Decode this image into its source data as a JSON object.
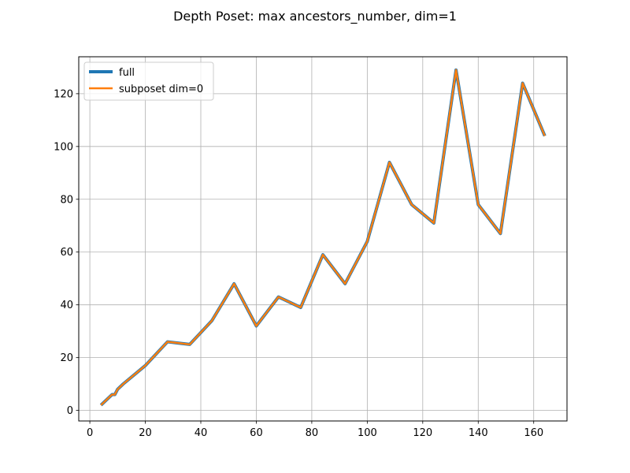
{
  "chart_data": {
    "type": "line",
    "title": "Depth Poset: max ancestors_number, dim=1",
    "xlabel": "",
    "ylabel": "",
    "xlim": [
      -4,
      172
    ],
    "ylim": [
      -4,
      134
    ],
    "x_ticks": [
      0,
      20,
      40,
      60,
      80,
      100,
      120,
      140,
      160
    ],
    "y_ticks": [
      0,
      20,
      40,
      60,
      80,
      100,
      120
    ],
    "grid": true,
    "legend_position": "top-left",
    "series": [
      {
        "name": "full",
        "color": "#1f77b4",
        "x": [
          4,
          8,
          9,
          10,
          12,
          16,
          20,
          24,
          28,
          32,
          36,
          40,
          44,
          48,
          52,
          56,
          60,
          64,
          68,
          72,
          76,
          80,
          84,
          88,
          92,
          96,
          100,
          104,
          108,
          112,
          116,
          120,
          124,
          128,
          132,
          136,
          140,
          144,
          148,
          152,
          156,
          160,
          164
        ],
        "values": [
          2,
          6,
          6,
          8,
          10,
          13.5,
          17,
          21.5,
          26,
          25.5,
          25,
          29.5,
          34,
          41,
          48,
          40,
          32,
          37.5,
          43,
          41,
          39,
          49,
          59,
          53.5,
          48,
          56,
          64,
          79,
          94,
          86,
          78,
          74.5,
          71,
          100,
          129,
          103.5,
          78,
          72.5,
          67,
          95.5,
          124,
          114,
          104
        ]
      },
      {
        "name": "subposet dim=0",
        "color": "#ff7f0e",
        "x": [
          4,
          8,
          9,
          10,
          12,
          16,
          20,
          24,
          28,
          32,
          36,
          40,
          44,
          48,
          52,
          56,
          60,
          64,
          68,
          72,
          76,
          80,
          84,
          88,
          92,
          96,
          100,
          104,
          108,
          112,
          116,
          120,
          124,
          128,
          132,
          136,
          140,
          144,
          148,
          152,
          156,
          160,
          164
        ],
        "values": [
          2,
          6,
          6,
          8,
          10,
          13.5,
          17,
          21.5,
          26,
          25.5,
          25,
          29.5,
          34,
          41,
          48,
          40,
          32,
          37.5,
          43,
          41,
          39,
          49,
          59,
          53.5,
          48,
          56,
          64,
          79,
          94,
          86,
          78,
          74.5,
          71,
          100,
          129,
          103.5,
          78,
          72.5,
          67,
          95.5,
          124,
          114,
          104
        ]
      }
    ]
  }
}
